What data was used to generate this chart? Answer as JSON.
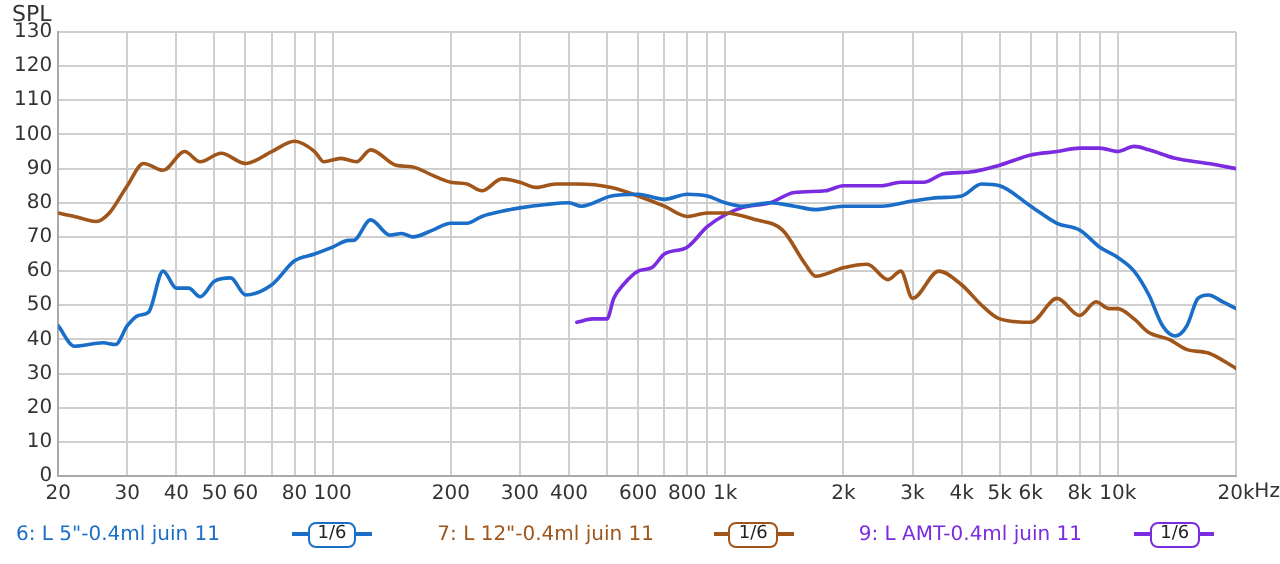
{
  "chart_data": {
    "type": "line",
    "ylabel": "SPL",
    "log": "x",
    "grid": true,
    "legend": "bottom",
    "marker": "none",
    "line_style": "solid",
    "xlim": [
      20,
      20000
    ],
    "ylim": [
      0,
      130
    ],
    "xticks": [
      20,
      30,
      40,
      50,
      60,
      {
        "value": 70,
        "label": null
      },
      80,
      {
        "value": 90,
        "label": null
      },
      100,
      200,
      300,
      400,
      {
        "value": 500,
        "label": null
      },
      600,
      {
        "value": 700,
        "label": null
      },
      800,
      {
        "value": 900,
        "label": null
      },
      {
        "value": 1000,
        "label": "1k"
      },
      {
        "value": 2000,
        "label": "2k"
      },
      {
        "value": 3000,
        "label": "3k"
      },
      {
        "value": 4000,
        "label": "4k"
      },
      {
        "value": 5000,
        "label": "5k"
      },
      {
        "value": 6000,
        "label": "6k"
      },
      {
        "value": 7000,
        "label": null
      },
      {
        "value": 8000,
        "label": "8k"
      },
      {
        "value": 9000,
        "label": null
      },
      {
        "value": 10000,
        "label": "10k"
      },
      {
        "value": 20000,
        "label": "20k"
      }
    ],
    "xlabel": "Hz",
    "yticks": [
      0,
      10,
      20,
      30,
      40,
      50,
      60,
      70,
      80,
      90,
      100,
      110,
      120,
      130
    ],
    "annotations": [
      "1/6",
      "1/6",
      "1/6"
    ],
    "series": [
      {
        "name": "6: L 5\"-0.4ml juin 11",
        "color": "#1a6ec8",
        "x": [
          20,
          22,
          26,
          28,
          30,
          32,
          34,
          37,
          40,
          43,
          46,
          50,
          55,
          60,
          70,
          80,
          90,
          100,
          110,
          113,
          125,
          140,
          150,
          160,
          180,
          200,
          220,
          240,
          270,
          300,
          350,
          400,
          430,
          513,
          600,
          700,
          800,
          900,
          1000,
          1100,
          1300,
          1500,
          1700,
          2000,
          2500,
          3000,
          3500,
          4000,
          4500,
          5000,
          6000,
          7000,
          8000,
          9000,
          10000,
          11000,
          12000,
          13000,
          14000,
          15000,
          16000,
          17000,
          18500,
          20000
        ],
        "values": [
          44,
          38,
          39,
          38.5,
          44,
          47,
          48,
          60,
          55,
          55,
          52.5,
          57,
          58,
          53,
          56,
          63,
          65,
          67,
          69,
          69,
          75,
          70.5,
          71,
          70,
          72,
          74,
          74,
          76,
          77.5,
          78.5,
          79.5,
          80,
          79,
          82,
          82.5,
          81,
          82.5,
          82,
          80,
          79,
          80,
          79,
          78,
          79,
          79,
          80.5,
          81.5,
          82,
          85.5,
          85,
          79,
          74,
          72,
          67,
          64,
          60,
          53,
          44,
          41,
          44,
          52,
          53,
          51,
          49
        ]
      },
      {
        "name": "7: L 12\"-0.4ml juin 11",
        "color": "#a0561a",
        "x": [
          20,
          22,
          25,
          27,
          30,
          33,
          37,
          42,
          46,
          52,
          60,
          70,
          80,
          90,
          95,
          105,
          115,
          125,
          145,
          160,
          180,
          200,
          220,
          240,
          270,
          300,
          330,
          370,
          420,
          513,
          600,
          700,
          800,
          900,
          1000,
          1200,
          1400,
          1600,
          1700,
          2000,
          2300,
          2600,
          2800,
          3000,
          3500,
          4000,
          4500,
          5000,
          6000,
          7000,
          8000,
          8800,
          9500,
          10000,
          11000,
          12000,
          13500,
          15000,
          17000,
          20000
        ],
        "values": [
          77,
          76,
          74.5,
          77,
          85,
          91.5,
          89.5,
          95,
          92,
          94.5,
          91.5,
          95,
          98,
          95,
          92,
          93,
          92,
          95.5,
          91,
          90.5,
          88,
          86,
          85.5,
          83.5,
          87,
          86,
          84.5,
          85.5,
          85.5,
          84.5,
          82,
          79,
          76,
          77,
          77,
          75,
          72,
          62,
          58.5,
          61,
          62,
          57.5,
          60,
          52,
          60,
          56,
          50,
          46,
          45,
          52,
          47,
          51,
          49,
          49,
          46,
          42,
          40,
          37,
          36,
          31.5
        ]
      },
      {
        "name": "9: L AMT-0.4ml juin 11",
        "color": "#7b2be0",
        "x": [
          419,
          460,
          500,
          520,
          550,
          600,
          650,
          700,
          800,
          900,
          1000,
          1100,
          1300,
          1500,
          1800,
          2000,
          2500,
          2800,
          3200,
          3600,
          4200,
          5000,
          6000,
          7000,
          8000,
          9000,
          10000,
          11000,
          12000,
          14000,
          17000,
          20000
        ],
        "values": [
          45,
          46,
          46,
          52,
          56,
          60,
          61,
          65,
          67,
          73,
          76.5,
          78.5,
          80,
          83,
          83.5,
          85,
          85,
          86,
          86,
          88.5,
          89,
          91,
          94,
          95,
          96,
          96,
          95,
          96.5,
          95.5,
          93,
          91.5,
          90
        ]
      }
    ]
  }
}
